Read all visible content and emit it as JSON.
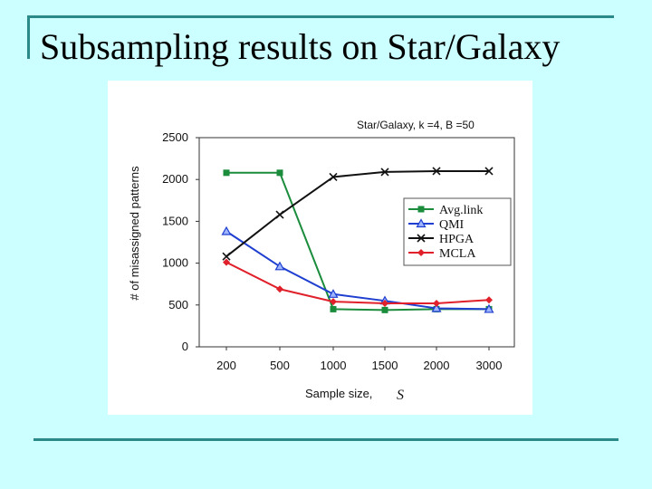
{
  "slide": {
    "title": "Subsampling results on Star/Galaxy"
  },
  "chart_data": {
    "type": "line",
    "title": "Star/Galaxy,  k =4, B =50",
    "xlabel": "Sample size,",
    "xlabel_symbol": "S",
    "ylabel": "# of misassigned patterns",
    "categories": [
      "200",
      "500",
      "1000",
      "1500",
      "2000",
      "3000"
    ],
    "ylim": [
      0,
      2500
    ],
    "yticks": [
      0,
      500,
      1000,
      1500,
      2000,
      2500
    ],
    "grid": false,
    "legend_position": "right",
    "series": [
      {
        "name": "Avg.link",
        "color": "#1a8c3c",
        "marker": "square",
        "values": [
          2080,
          2080,
          450,
          440,
          450,
          450
        ]
      },
      {
        "name": "QMI",
        "color": "#1f3fd0",
        "marker": "triangle",
        "values": [
          1380,
          960,
          630,
          550,
          460,
          450
        ]
      },
      {
        "name": "HPGA",
        "color": "#111111",
        "marker": "x",
        "values": [
          1080,
          1580,
          2030,
          2090,
          2100,
          2100
        ]
      },
      {
        "name": "MCLA",
        "color": "#e0202a",
        "marker": "diamond",
        "values": [
          1010,
          690,
          540,
          520,
          520,
          560
        ]
      }
    ]
  }
}
